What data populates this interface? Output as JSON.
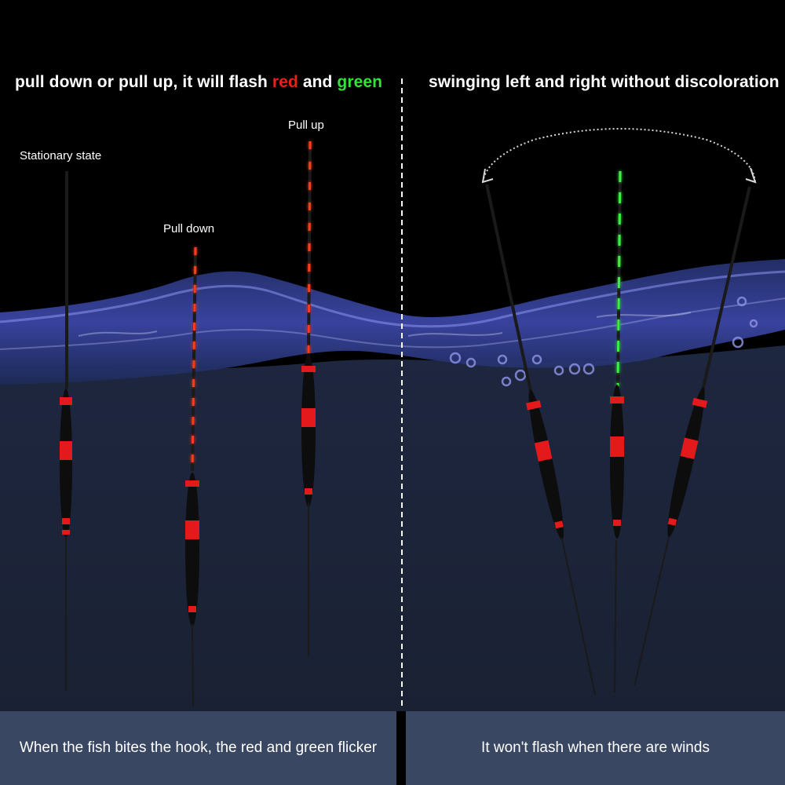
{
  "headline_left": {
    "part1": "pull down or pull up, it will flash ",
    "red_word": "red",
    "part2": " and ",
    "green_word": "green"
  },
  "headline_right": "swinging left and right without discoloration",
  "labels": {
    "stationary": "Stationary state",
    "pull_down": "Pull down",
    "pull_up": "Pull up"
  },
  "captions": {
    "left": "When the fish bites the hook, the red and green flicker",
    "right": "It won't flash when there are winds"
  },
  "colors": {
    "sky": "#000000",
    "underwater": "#1c2436",
    "caption_bg": "#3a4762",
    "glow_green": "#3bef45",
    "glow_red": "#ff3b1a",
    "float_band_red": "#e3191b"
  }
}
